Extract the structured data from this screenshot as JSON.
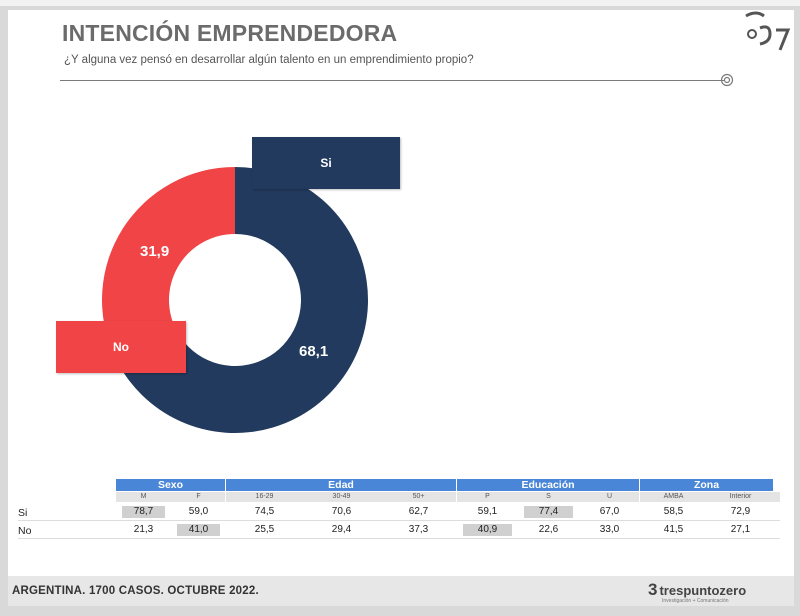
{
  "title": "INTENCIÓN EMPRENDEDORA",
  "subtitle": "¿Y alguna vez pensó en desarrollar algún talento en un emprendimiento propio?",
  "colors": {
    "si": "#223a5e",
    "no": "#f04446",
    "header": "#4a86d8"
  },
  "chart_data": {
    "type": "pie",
    "donut": true,
    "categories": [
      "Si",
      "No"
    ],
    "values": [
      68.1,
      31.9
    ],
    "value_labels": [
      "68,1",
      "31,9"
    ],
    "legend": [
      "Si",
      "No"
    ]
  },
  "table": {
    "groups": [
      {
        "name": "Sexo",
        "cols": [
          "M",
          "F"
        ]
      },
      {
        "name": "Edad",
        "cols": [
          "16-29",
          "30-49",
          "50+"
        ]
      },
      {
        "name": "Educación",
        "cols": [
          "P",
          "S",
          "U"
        ]
      },
      {
        "name": "Zona",
        "cols": [
          "AMBA",
          "Interior"
        ]
      }
    ],
    "rows": [
      {
        "label": "Si",
        "values": [
          "78,7",
          "59,0",
          "74,5",
          "70,6",
          "62,7",
          "59,1",
          "77,4",
          "67,0",
          "58,5",
          "72,9"
        ],
        "highlight": [
          0,
          6
        ]
      },
      {
        "label": "No",
        "values": [
          "21,3",
          "41,0",
          "25,5",
          "29,4",
          "37,3",
          "40,9",
          "22,6",
          "33,0",
          "41,5",
          "27,1"
        ],
        "highlight": [
          1,
          5
        ]
      }
    ]
  },
  "footer": {
    "text": "ARGENTINA. 1700 CASOS. OCTUBRE 2022.",
    "brand": "trespuntozero",
    "brand_mark": "3",
    "brand_sub": "Investigación + Comunicación"
  }
}
